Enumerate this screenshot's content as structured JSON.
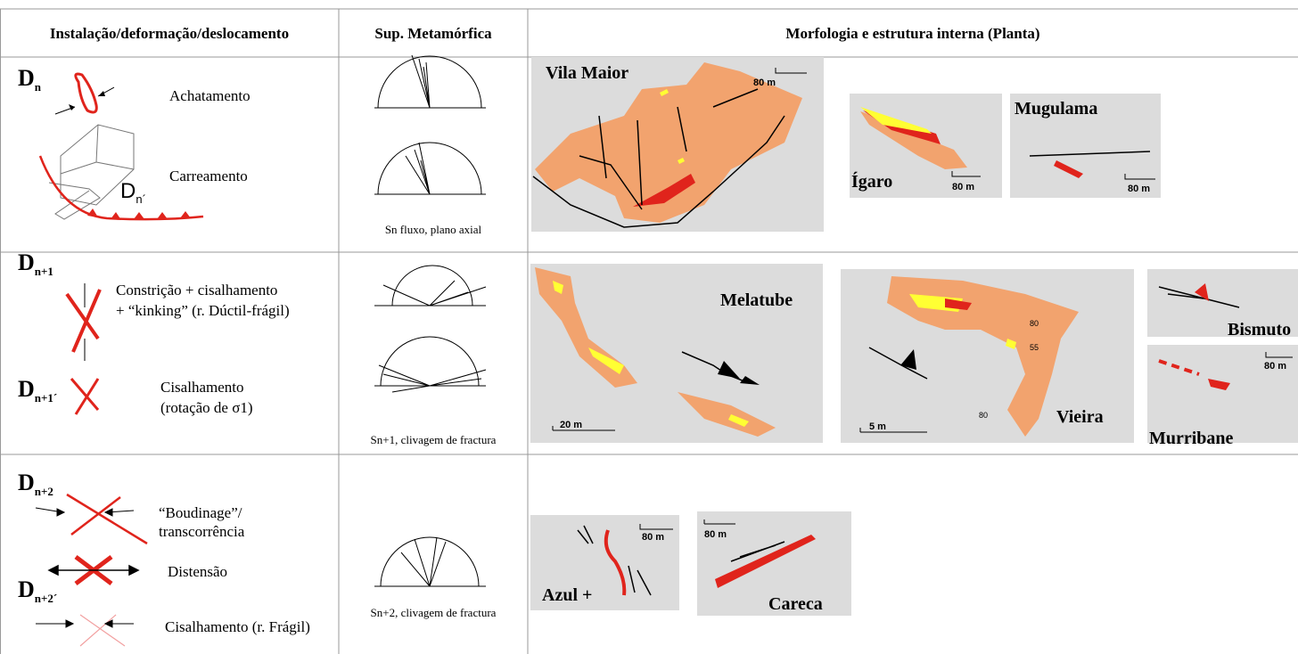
{
  "header": {
    "columns": [
      "Instalação/deformação/deslocamento",
      "Sup. Metamórfica",
      "Morfologia e estrutura interna (Planta)"
    ]
  },
  "rows": [
    {
      "phases": [
        {
          "symbol": "D",
          "sub": "n"
        },
        {
          "symbol": "D",
          "sub": "n´"
        }
      ],
      "labels": [
        "Achatamento",
        "Carreamento"
      ],
      "surface_note": "Sn fluxo, plano axial",
      "maps": [
        {
          "name": "Vila Maior",
          "scale": "80 m"
        },
        {
          "name": "Ígaro",
          "scale": "80 m"
        },
        {
          "name": "Mugulama",
          "scale": "80 m"
        }
      ]
    },
    {
      "phases": [
        {
          "symbol": "D",
          "sub": "n+1"
        },
        {
          "symbol": "D",
          "sub": "n+1´"
        }
      ],
      "labels": [
        "Constrição + cisalhamento",
        "+ “kinking” (r. Dúctil-frágil)",
        "Cisalhamento",
        "(rotação de σ1)"
      ],
      "surface_note": "Sn+1, clivagem de fractura",
      "maps": [
        {
          "name": "Melatube",
          "scale": "20 m"
        },
        {
          "name": "Vieira",
          "scale": "5 m",
          "annotations": [
            "80",
            "55",
            "80"
          ]
        },
        {
          "name": "Bismuto"
        },
        {
          "name": "Murribane",
          "scale": "80 m"
        }
      ]
    },
    {
      "phases": [
        {
          "symbol": "D",
          "sub": "n+2"
        },
        {
          "symbol": "D",
          "sub": "n+2´"
        }
      ],
      "labels": [
        "“Boudinage”/",
        "transcorrência",
        "Distensão",
        "Cisalhamento (r. Frágil)"
      ],
      "surface_note": "Sn+2, clivagem de fractura",
      "maps": [
        {
          "name": "Azul +",
          "scale": "80 m"
        },
        {
          "name": "Careca",
          "scale": "80 m"
        }
      ]
    }
  ]
}
